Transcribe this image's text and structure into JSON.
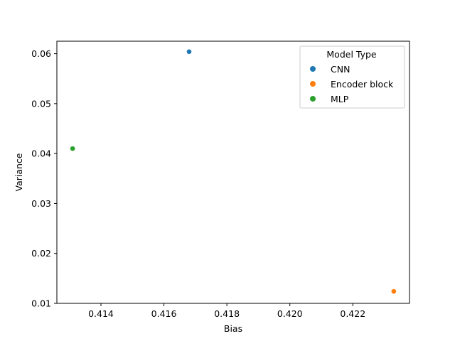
{
  "chart_data": {
    "type": "scatter",
    "title": "",
    "xlabel": "Bias",
    "ylabel": "Variance",
    "xlim": [
      0.4126,
      0.4238
    ],
    "ylim": [
      0.01,
      0.0625
    ],
    "xticks": [
      0.414,
      0.416,
      0.418,
      0.42,
      0.422
    ],
    "xtick_labels": [
      "0.414",
      "0.416",
      "0.418",
      "0.420",
      "0.422"
    ],
    "yticks": [
      0.01,
      0.02,
      0.03,
      0.04,
      0.05,
      0.06
    ],
    "ytick_labels": [
      "0.01",
      "0.02",
      "0.03",
      "0.04",
      "0.05",
      "0.06"
    ],
    "grid": false,
    "legend": {
      "title": "Model Type",
      "position": "top-right"
    },
    "series": [
      {
        "name": "CNN",
        "color": "#1f77b4",
        "points": [
          {
            "x": 0.4168,
            "y": 0.0604
          }
        ]
      },
      {
        "name": "Encoder block",
        "color": "#ff7f0e",
        "points": [
          {
            "x": 0.4233,
            "y": 0.0124
          }
        ]
      },
      {
        "name": "MLP",
        "color": "#2ca02c",
        "points": [
          {
            "x": 0.4131,
            "y": 0.041
          }
        ]
      }
    ]
  }
}
